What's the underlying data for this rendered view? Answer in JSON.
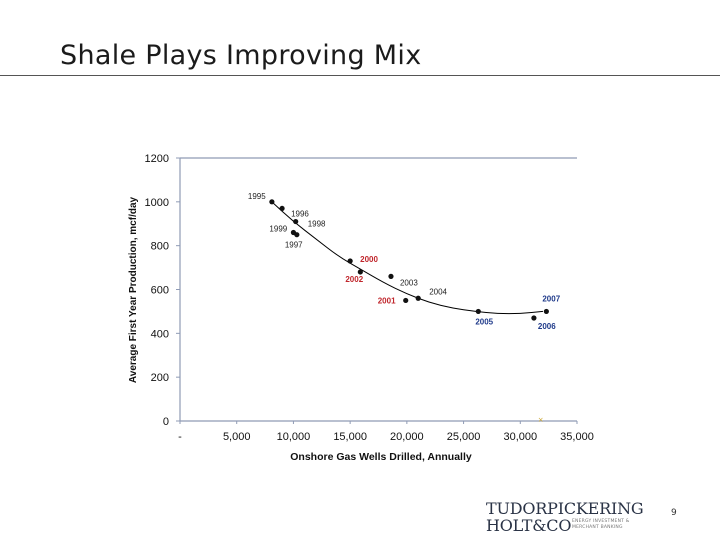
{
  "slide": {
    "title": "Shale Plays Improving Mix",
    "page_number": "9",
    "logo": {
      "line1": "TUDORPICKERING",
      "line2": "HOLT&CO",
      "tagline1": "ENERGY INVESTMENT &",
      "tagline2": "MERCHANT BANKING"
    }
  },
  "colors": {
    "point": "#111111",
    "point_highlight": "#c0262c",
    "label_highlight_blue": "#1f3a8a",
    "trend": "#000000",
    "axis": "#8f9bb5"
  },
  "chart_data": {
    "type": "scatter",
    "xlabel": "Onshore Gas Wells Drilled, Annually",
    "ylabel": "Average First Year Production, mcf/day",
    "xlim": [
      0,
      35000
    ],
    "ylim": [
      0,
      1200
    ],
    "x_ticks": [
      0,
      5000,
      10000,
      15000,
      20000,
      25000,
      30000,
      35000
    ],
    "x_tick_labels": [
      "-",
      "5,000",
      "10,000",
      "15,000",
      "20,000",
      "25,000",
      "30,000",
      "35,000"
    ],
    "y_ticks": [
      0,
      200,
      400,
      600,
      800,
      1000,
      1200
    ],
    "y_tick_labels": [
      "0",
      "200",
      "400",
      "600",
      "800",
      "1000",
      "1200"
    ],
    "points": [
      {
        "label": "1995",
        "x": 8100,
        "y": 1000,
        "label_color": "#222222"
      },
      {
        "label": "1996",
        "x": 9000,
        "y": 970,
        "label_color": "#222222"
      },
      {
        "label": "1998",
        "x": 10200,
        "y": 910,
        "label_color": "#222222"
      },
      {
        "label": "1999",
        "x": 10000,
        "y": 860,
        "label_color": "#222222"
      },
      {
        "label": "1997",
        "x": 10300,
        "y": 850,
        "label_color": "#222222"
      },
      {
        "label": "2000",
        "x": 15000,
        "y": 730,
        "label_color": "#c0262c"
      },
      {
        "label": "2002",
        "x": 15900,
        "y": 680,
        "label_color": "#c0262c"
      },
      {
        "label": "2003",
        "x": 18600,
        "y": 660,
        "label_color": "#222222"
      },
      {
        "label": "2001",
        "x": 19900,
        "y": 550,
        "label_color": "#c0262c"
      },
      {
        "label": "2004",
        "x": 21000,
        "y": 560,
        "label_color": "#222222"
      },
      {
        "label": "2005",
        "x": 26300,
        "y": 500,
        "label_color": "#1f3a8a"
      },
      {
        "label": "2006",
        "x": 31200,
        "y": 470,
        "label_color": "#1f3a8a"
      },
      {
        "label": "2007",
        "x": 32300,
        "y": 500,
        "label_color": "#1f3a8a"
      }
    ],
    "trendline": [
      {
        "x": 8100,
        "y": 1000
      },
      {
        "x": 10000,
        "y": 910
      },
      {
        "x": 12000,
        "y": 830
      },
      {
        "x": 14000,
        "y": 750
      },
      {
        "x": 16000,
        "y": 690
      },
      {
        "x": 18000,
        "y": 630
      },
      {
        "x": 20000,
        "y": 580
      },
      {
        "x": 22000,
        "y": 540
      },
      {
        "x": 24000,
        "y": 515
      },
      {
        "x": 26000,
        "y": 500
      },
      {
        "x": 28000,
        "y": 490
      },
      {
        "x": 30000,
        "y": 490
      },
      {
        "x": 32000,
        "y": 500
      }
    ],
    "grid": false,
    "legend": "none"
  }
}
